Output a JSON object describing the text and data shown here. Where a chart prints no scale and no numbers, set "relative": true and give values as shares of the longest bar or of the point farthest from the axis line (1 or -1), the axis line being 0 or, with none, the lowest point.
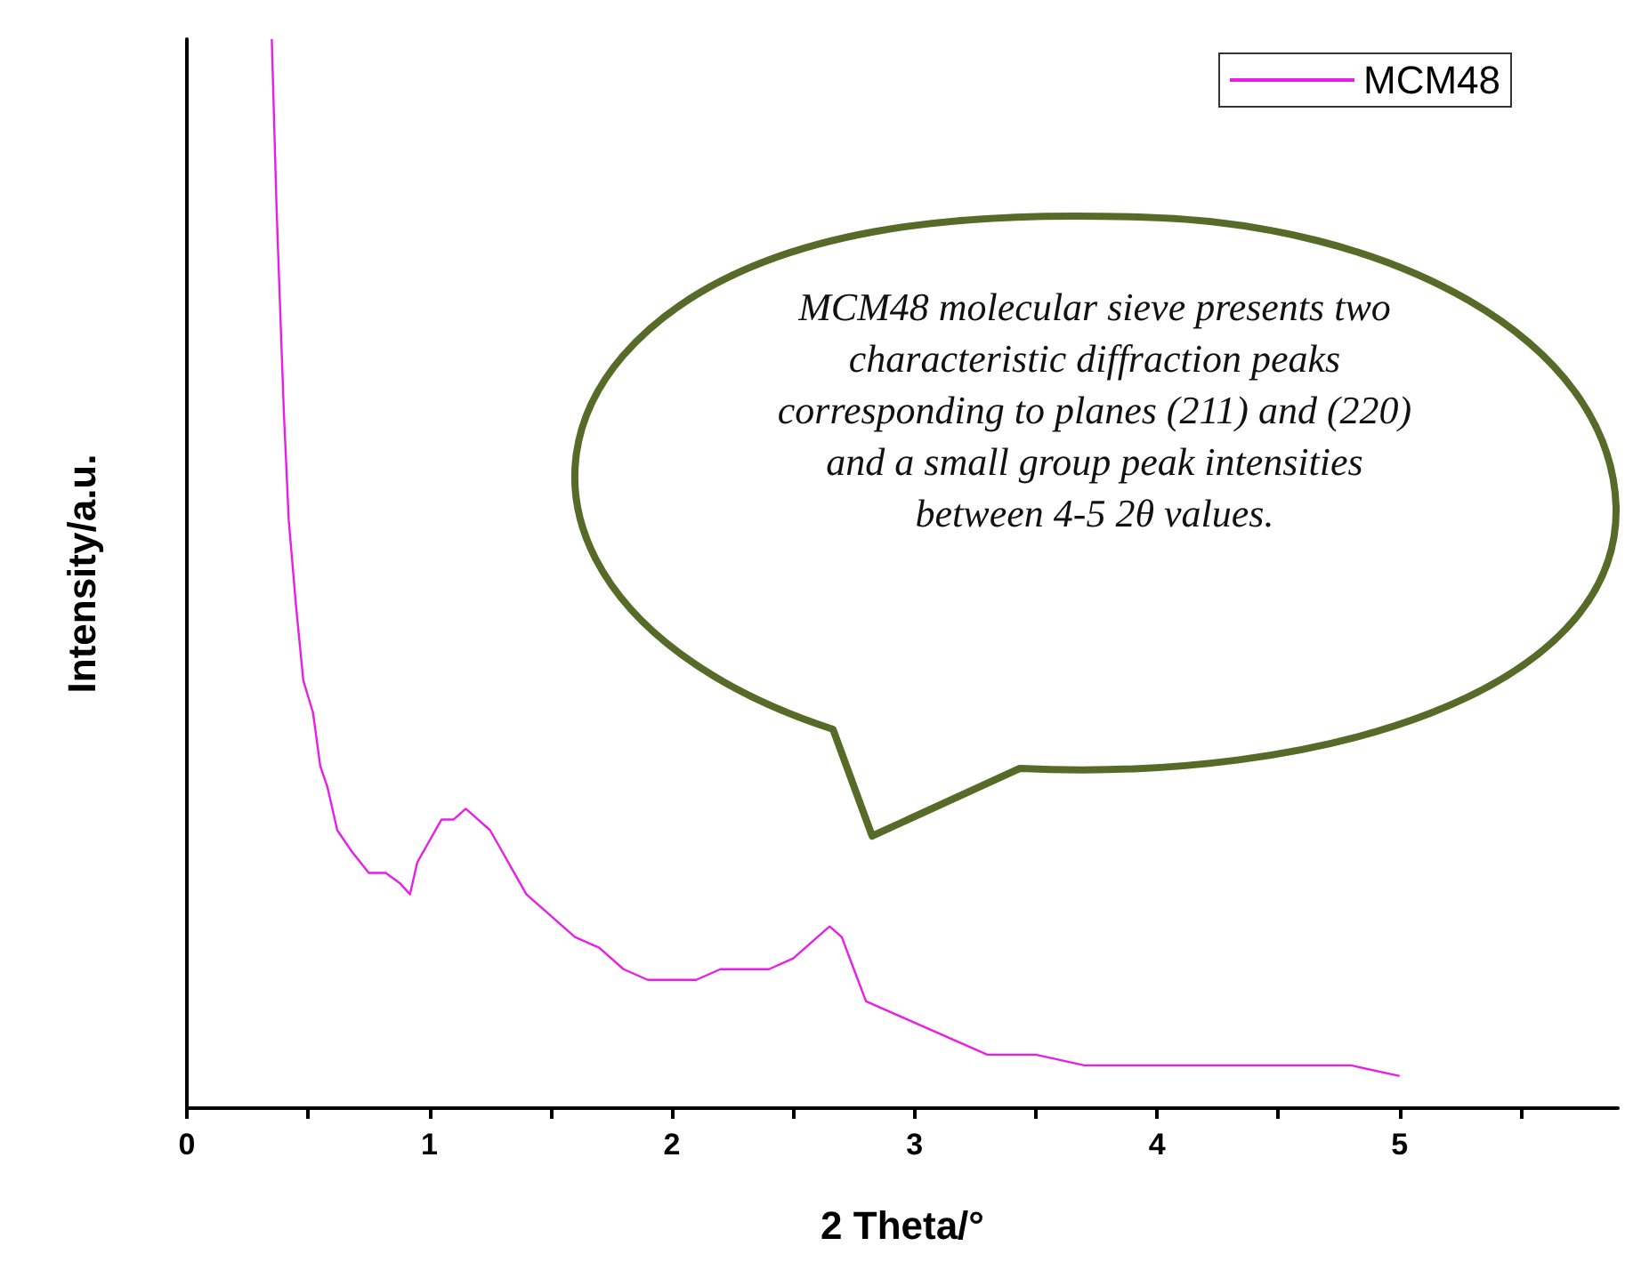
{
  "chart_data": {
    "type": "line",
    "relative": true,
    "xlabel": "2 Theta/°",
    "ylabel": "Intensity/a.u.",
    "xlim": [
      0,
      5.9
    ],
    "xticks": [
      0,
      {
        "value": 0.5,
        "label": null
      },
      1,
      {
        "value": 1.5,
        "label": null
      },
      2,
      {
        "value": 2.5,
        "label": null
      },
      3,
      {
        "value": 3.5,
        "label": null
      },
      4,
      {
        "value": 4.5,
        "label": null
      },
      5,
      {
        "value": 5.5,
        "label": null
      }
    ],
    "tick_labels": "x",
    "grid": false,
    "legend": "top right",
    "marker": "none",
    "line_style": "solid",
    "annotations": [
      "MCM48 molecular sieve presents two characteristic diffraction peaks corresponding to planes (211) and (220) and a small group peak intensities between 4-5 2θ values."
    ],
    "series": [
      {
        "name": "MCM48",
        "color": "#e81ee8",
        "x": [
          0.35,
          0.37,
          0.4,
          0.42,
          0.45,
          0.48,
          0.52,
          0.55,
          0.58,
          0.62,
          0.68,
          0.75,
          0.82,
          0.88,
          0.92,
          0.95,
          1.0,
          1.05,
          1.1,
          1.15,
          1.2,
          1.25,
          1.3,
          1.35,
          1.4,
          1.5,
          1.6,
          1.7,
          1.8,
          1.9,
          2.0,
          2.1,
          2.2,
          2.3,
          2.4,
          2.5,
          2.6,
          2.65,
          2.7,
          2.75,
          2.8,
          2.9,
          3.0,
          3.1,
          3.2,
          3.3,
          3.5,
          3.7,
          4.0,
          4.5,
          4.8,
          5.0
        ],
        "values": [
          1.0,
          0.84,
          0.65,
          0.55,
          0.47,
          0.4,
          0.37,
          0.32,
          0.3,
          0.26,
          0.24,
          0.22,
          0.22,
          0.21,
          0.2,
          0.23,
          0.25,
          0.27,
          0.27,
          0.28,
          0.27,
          0.26,
          0.24,
          0.22,
          0.2,
          0.18,
          0.16,
          0.15,
          0.13,
          0.12,
          0.12,
          0.12,
          0.13,
          0.13,
          0.13,
          0.14,
          0.16,
          0.17,
          0.16,
          0.13,
          0.1,
          0.09,
          0.08,
          0.07,
          0.06,
          0.05,
          0.05,
          0.04,
          0.04,
          0.04,
          0.04,
          0.03
        ]
      }
    ]
  }
}
